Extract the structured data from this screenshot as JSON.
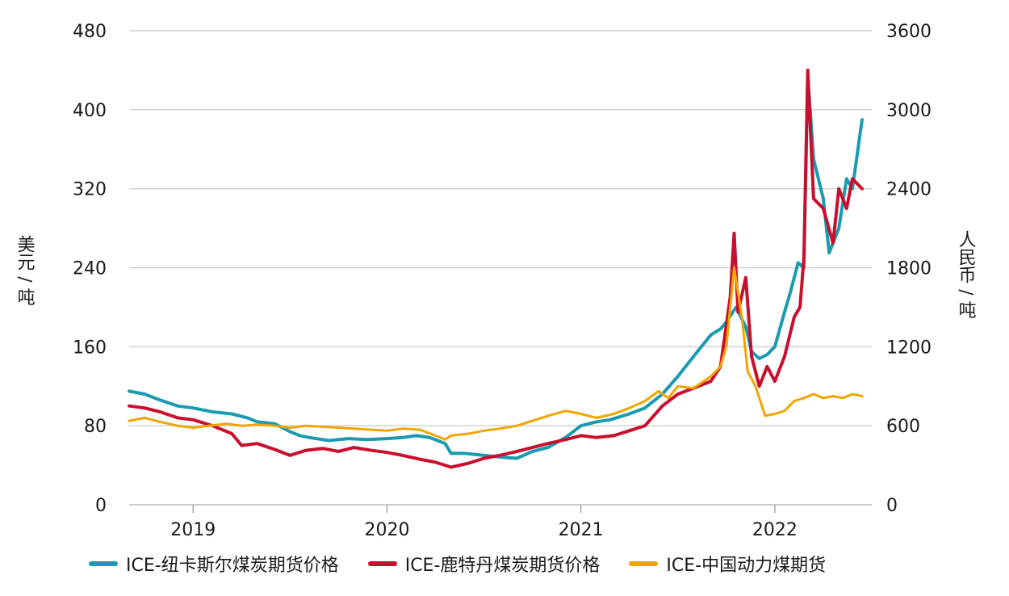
{
  "chart_data": {
    "type": "line",
    "left_axis": {
      "label": "美元 / 吨",
      "ticks": [
        "0",
        "80",
        "160",
        "240",
        "320",
        "400",
        "480"
      ],
      "range": [
        0,
        480
      ]
    },
    "right_axis": {
      "label": "人民币 / 吨",
      "ticks": [
        "0",
        "600",
        "1200",
        "1800",
        "2400",
        "3000",
        "3600"
      ],
      "range": [
        0,
        3600
      ]
    },
    "x_axis": {
      "ticks": [
        "2019",
        "2020",
        "2021",
        "2022"
      ],
      "range": [
        2018.67,
        2022.5
      ]
    },
    "grid": "horizontal",
    "legend_position": "bottom",
    "series": [
      {
        "name": "ICE-纽卡斯尔煤炭期货价格",
        "axis": "left",
        "color": "#1a9bb0",
        "points": [
          [
            2018.67,
            115
          ],
          [
            2018.75,
            112
          ],
          [
            2018.83,
            106
          ],
          [
            2018.92,
            100
          ],
          [
            2019.0,
            98
          ],
          [
            2019.1,
            94
          ],
          [
            2019.2,
            92
          ],
          [
            2019.28,
            88
          ],
          [
            2019.33,
            84
          ],
          [
            2019.42,
            82
          ],
          [
            2019.5,
            74
          ],
          [
            2019.55,
            70
          ],
          [
            2019.6,
            68
          ],
          [
            2019.7,
            65
          ],
          [
            2019.8,
            67
          ],
          [
            2019.9,
            66
          ],
          [
            2020.0,
            67
          ],
          [
            2020.08,
            68
          ],
          [
            2020.15,
            70
          ],
          [
            2020.22,
            68
          ],
          [
            2020.3,
            62
          ],
          [
            2020.33,
            52
          ],
          [
            2020.4,
            52
          ],
          [
            2020.5,
            50
          ],
          [
            2020.6,
            48
          ],
          [
            2020.67,
            47
          ],
          [
            2020.75,
            54
          ],
          [
            2020.83,
            58
          ],
          [
            2020.92,
            68
          ],
          [
            2021.0,
            80
          ],
          [
            2021.08,
            84
          ],
          [
            2021.15,
            86
          ],
          [
            2021.25,
            92
          ],
          [
            2021.33,
            98
          ],
          [
            2021.42,
            112
          ],
          [
            2021.5,
            130
          ],
          [
            2021.58,
            150
          ],
          [
            2021.67,
            172
          ],
          [
            2021.72,
            178
          ],
          [
            2021.75,
            185
          ],
          [
            2021.8,
            200
          ],
          [
            2021.85,
            180
          ],
          [
            2021.88,
            155
          ],
          [
            2021.92,
            148
          ],
          [
            2021.96,
            152
          ],
          [
            2022.0,
            160
          ],
          [
            2022.05,
            195
          ],
          [
            2022.08,
            215
          ],
          [
            2022.12,
            245
          ],
          [
            2022.15,
            240
          ],
          [
            2022.17,
            435
          ],
          [
            2022.2,
            350
          ],
          [
            2022.25,
            310
          ],
          [
            2022.28,
            255
          ],
          [
            2022.33,
            280
          ],
          [
            2022.37,
            330
          ],
          [
            2022.4,
            320
          ],
          [
            2022.45,
            390
          ]
        ]
      },
      {
        "name": "ICE-鹿特丹煤炭期货价格",
        "axis": "left",
        "color": "#c8102e",
        "points": [
          [
            2018.67,
            100
          ],
          [
            2018.75,
            98
          ],
          [
            2018.83,
            94
          ],
          [
            2018.92,
            88
          ],
          [
            2019.0,
            86
          ],
          [
            2019.1,
            80
          ],
          [
            2019.2,
            72
          ],
          [
            2019.25,
            60
          ],
          [
            2019.33,
            62
          ],
          [
            2019.42,
            56
          ],
          [
            2019.5,
            50
          ],
          [
            2019.58,
            55
          ],
          [
            2019.67,
            57
          ],
          [
            2019.75,
            54
          ],
          [
            2019.83,
            58
          ],
          [
            2019.92,
            55
          ],
          [
            2020.0,
            53
          ],
          [
            2020.08,
            50
          ],
          [
            2020.17,
            46
          ],
          [
            2020.25,
            43
          ],
          [
            2020.3,
            40
          ],
          [
            2020.33,
            38
          ],
          [
            2020.42,
            42
          ],
          [
            2020.5,
            47
          ],
          [
            2020.58,
            50
          ],
          [
            2020.67,
            54
          ],
          [
            2020.75,
            58
          ],
          [
            2020.83,
            62
          ],
          [
            2020.92,
            66
          ],
          [
            2021.0,
            70
          ],
          [
            2021.08,
            68
          ],
          [
            2021.17,
            70
          ],
          [
            2021.25,
            75
          ],
          [
            2021.33,
            80
          ],
          [
            2021.42,
            100
          ],
          [
            2021.5,
            112
          ],
          [
            2021.58,
            118
          ],
          [
            2021.67,
            125
          ],
          [
            2021.72,
            140
          ],
          [
            2021.77,
            210
          ],
          [
            2021.79,
            275
          ],
          [
            2021.81,
            195
          ],
          [
            2021.85,
            230
          ],
          [
            2021.88,
            150
          ],
          [
            2021.92,
            120
          ],
          [
            2021.96,
            140
          ],
          [
            2022.0,
            125
          ],
          [
            2022.05,
            150
          ],
          [
            2022.1,
            190
          ],
          [
            2022.13,
            200
          ],
          [
            2022.15,
            250
          ],
          [
            2022.17,
            440
          ],
          [
            2022.2,
            310
          ],
          [
            2022.25,
            300
          ],
          [
            2022.3,
            265
          ],
          [
            2022.33,
            320
          ],
          [
            2022.37,
            300
          ],
          [
            2022.4,
            330
          ],
          [
            2022.45,
            320
          ]
        ]
      },
      {
        "name": "ICE-中国动力煤期货",
        "axis": "left",
        "color": "#f0a500",
        "points": [
          [
            2018.67,
            85
          ],
          [
            2018.75,
            88
          ],
          [
            2018.83,
            84
          ],
          [
            2018.92,
            80
          ],
          [
            2019.0,
            78
          ],
          [
            2019.08,
            80
          ],
          [
            2019.17,
            82
          ],
          [
            2019.25,
            80
          ],
          [
            2019.33,
            81
          ],
          [
            2019.42,
            80
          ],
          [
            2019.5,
            78
          ],
          [
            2019.58,
            80
          ],
          [
            2019.67,
            79
          ],
          [
            2019.75,
            78
          ],
          [
            2019.83,
            77
          ],
          [
            2019.92,
            76
          ],
          [
            2020.0,
            75
          ],
          [
            2020.08,
            77
          ],
          [
            2020.17,
            76
          ],
          [
            2020.25,
            70
          ],
          [
            2020.3,
            66
          ],
          [
            2020.33,
            70
          ],
          [
            2020.42,
            72
          ],
          [
            2020.5,
            75
          ],
          [
            2020.58,
            77
          ],
          [
            2020.67,
            80
          ],
          [
            2020.75,
            85
          ],
          [
            2020.83,
            90
          ],
          [
            2020.92,
            95
          ],
          [
            2021.0,
            92
          ],
          [
            2021.08,
            88
          ],
          [
            2021.17,
            92
          ],
          [
            2021.25,
            98
          ],
          [
            2021.33,
            105
          ],
          [
            2021.4,
            115
          ],
          [
            2021.45,
            108
          ],
          [
            2021.5,
            120
          ],
          [
            2021.58,
            118
          ],
          [
            2021.67,
            130
          ],
          [
            2021.72,
            140
          ],
          [
            2021.75,
            160
          ],
          [
            2021.79,
            240
          ],
          [
            2021.83,
            190
          ],
          [
            2021.86,
            135
          ],
          [
            2021.9,
            120
          ],
          [
            2021.95,
            90
          ],
          [
            2022.0,
            92
          ],
          [
            2022.05,
            95
          ],
          [
            2022.1,
            105
          ],
          [
            2022.15,
            108
          ],
          [
            2022.2,
            112
          ],
          [
            2022.25,
            108
          ],
          [
            2022.3,
            110
          ],
          [
            2022.35,
            108
          ],
          [
            2022.4,
            112
          ],
          [
            2022.45,
            110
          ]
        ]
      }
    ]
  }
}
